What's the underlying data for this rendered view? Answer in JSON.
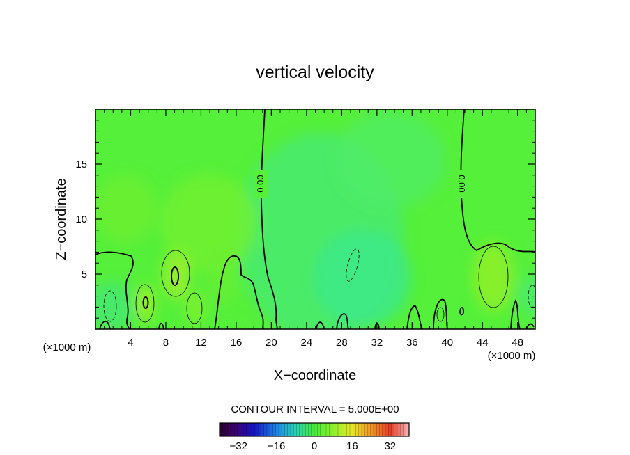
{
  "chart_data": {
    "type": "heatmap",
    "title": "vertical velocity",
    "xlabel": "X−coordinate",
    "ylabel": "Z−coordinate",
    "x_unit_left": "(×1000 m)",
    "x_unit_right": "(×1000 m)",
    "xlim": [
      0,
      50
    ],
    "ylim": [
      0,
      20
    ],
    "x_ticks": [
      4,
      8,
      12,
      16,
      20,
      24,
      28,
      32,
      36,
      40,
      44,
      48
    ],
    "y_ticks": [
      5,
      10,
      15
    ],
    "contour_interval_text": "CONTOUR INTERVAL = 5.000E+00",
    "contour_labels": [
      {
        "text": "0.00",
        "x": 18.9,
        "z": 13.0
      },
      {
        "text": "0.00",
        "x": 41.1,
        "z": 13.0
      }
    ],
    "colorbar": {
      "range": [
        -40,
        40
      ],
      "ticks": [
        -32,
        -16,
        0,
        16,
        32
      ],
      "tick_labels": [
        "−32",
        "−16",
        "0",
        "16",
        "32"
      ]
    },
    "colors": {
      "background_field": "#55f03a",
      "positive_tint": "#7af02a",
      "negative_tint": "#3fe87a"
    }
  }
}
